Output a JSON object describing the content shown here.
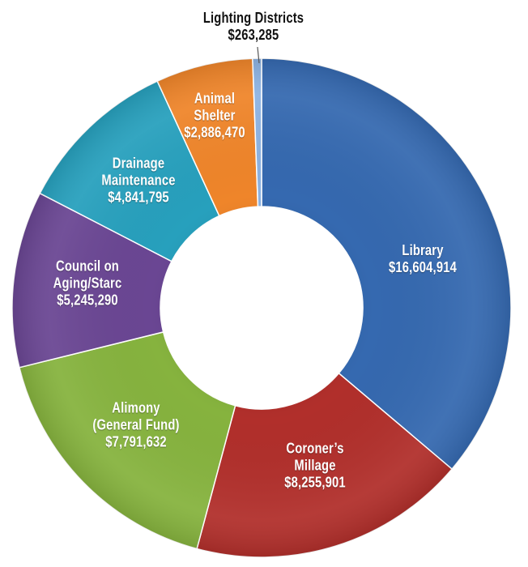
{
  "chart_data": {
    "type": "pie",
    "title": "",
    "slices": [
      {
        "label_lines": [
          "Library"
        ],
        "value_text": "$16,604,914",
        "value": 16604914,
        "color": "#3569b0"
      },
      {
        "label_lines": [
          "Coroner’s",
          "Millage"
        ],
        "value_text": "$8,255,901",
        "value": 8255901,
        "color": "#b12f2b"
      },
      {
        "label_lines": [
          "Alimony",
          "(General Fund)"
        ],
        "value_text": "$7,791,632",
        "value": 7791632,
        "color": "#86b33e"
      },
      {
        "label_lines": [
          "Council on",
          "Aging/Starc"
        ],
        "value_text": "$5,245,290",
        "value": 5245290,
        "color": "#6a4693"
      },
      {
        "label_lines": [
          "Drainage",
          "Maintenance"
        ],
        "value_text": "$4,841,795",
        "value": 4841795,
        "color": "#27a0bd"
      },
      {
        "label_lines": [
          "Animal",
          "Shelter"
        ],
        "value_text": "$2,886,470",
        "value": 2886470,
        "color": "#ef852a"
      },
      {
        "label_lines": [
          "Lighting Districts"
        ],
        "value_text": "$263,285",
        "value": 263285,
        "color": "#8db3e2"
      }
    ]
  }
}
